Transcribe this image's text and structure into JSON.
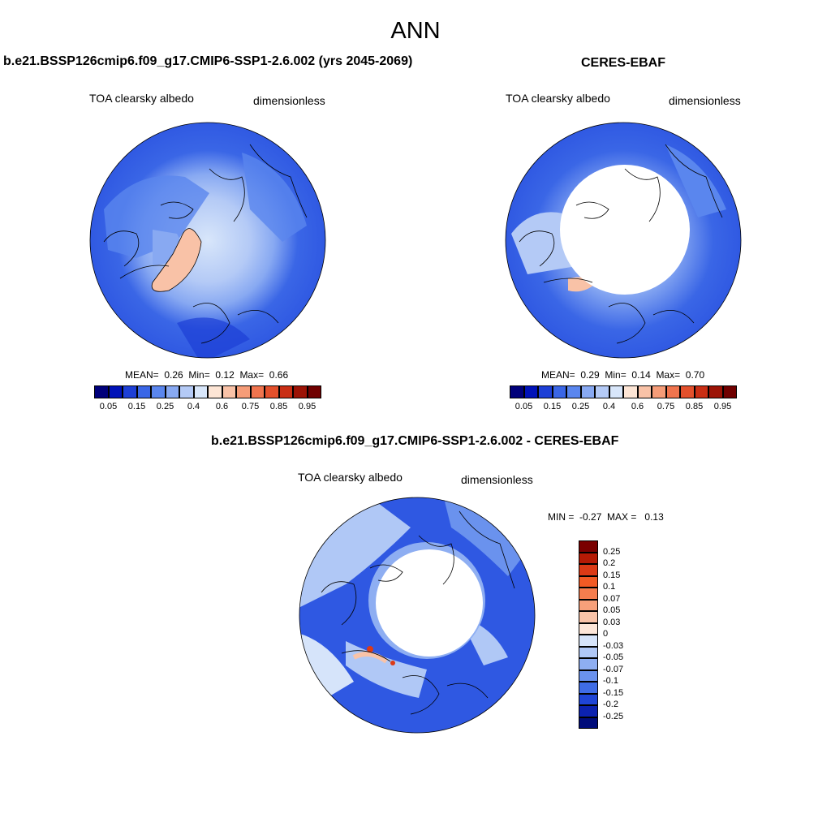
{
  "title": "ANN",
  "panels": [
    {
      "title": "b.e21.BSSP126cmip6.f09_g17.CMIP6-SSP1-2.6.002 (yrs 2045-2069)",
      "variable": "TOA clearsky albedo",
      "units": "dimensionless",
      "stats": {
        "mean_label": "MEAN=",
        "mean": "0.26",
        "min_label": "Min=",
        "min": "0.12",
        "max_label": "Max=",
        "max": "0.66"
      }
    },
    {
      "title": "CERES-EBAF",
      "variable": "TOA clearsky albedo",
      "units": "dimensionless",
      "stats": {
        "mean_label": "MEAN=",
        "mean": "0.29",
        "min_label": "Min=",
        "min": "0.14",
        "max_label": "Max=",
        "max": "0.70"
      }
    },
    {
      "title": "b.e21.BSSP126cmip6.f09_g17.CMIP6-SSP1-2.6.002 - CERES-EBAF",
      "variable": "TOA clearsky albedo",
      "units": "dimensionless",
      "stats": {
        "min_label": "MIN =",
        "min": "-0.27",
        "max_label": "MAX =",
        "max": "0.13"
      }
    }
  ],
  "colorbar_abs": {
    "ticks": [
      "0.05",
      "0.15",
      "0.25",
      "0.4",
      "0.6",
      "0.75",
      "0.85",
      "0.95"
    ],
    "colors": [
      "#00007a",
      "#0012b8",
      "#1d3fd6",
      "#3a66e6",
      "#5a86ee",
      "#88a9f2",
      "#b4caf6",
      "#d8e6fa",
      "#fde5d5",
      "#f9c2a7",
      "#f59c78",
      "#f0744e",
      "#e3502c",
      "#c92e14",
      "#9c1306",
      "#700000"
    ]
  },
  "colorbar_diff": {
    "ticks": [
      "0.25",
      "0.2",
      "0.15",
      "0.1",
      "0.07",
      "0.05",
      "0.03",
      "0",
      "-0.03",
      "-0.05",
      "-0.07",
      "-0.1",
      "-0.15",
      "-0.2",
      "-0.25"
    ],
    "colors": [
      "#7a0000",
      "#b51a05",
      "#dc3a16",
      "#f25a24",
      "#f57d4e",
      "#f7a07a",
      "#f9c3a8",
      "#fde6d8",
      "#d6e4fa",
      "#b0c8f6",
      "#8eaef2",
      "#6a92ee",
      "#3f6ce6",
      "#1f45d6",
      "#0c22b0",
      "#000c7a"
    ]
  }
}
